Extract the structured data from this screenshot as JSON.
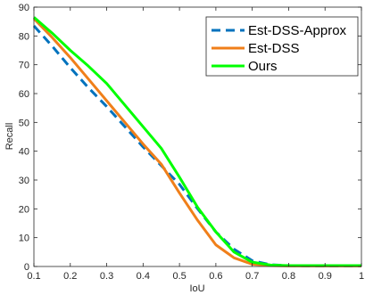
{
  "chart_data": {
    "type": "line",
    "title": "",
    "xlabel": "IoU",
    "ylabel": "Recall",
    "xlim": [
      0.1,
      1
    ],
    "ylim": [
      0,
      90
    ],
    "xticks": [
      0.1,
      0.2,
      0.3,
      0.4,
      0.5,
      0.6,
      0.7,
      0.8,
      0.9,
      1
    ],
    "xtick_labels": [
      "0.1",
      "0.2",
      "0.3",
      "0.4",
      "0.5",
      "0.6",
      "0.7",
      "0.8",
      "0.9",
      "1"
    ],
    "yticks": [
      0,
      10,
      20,
      30,
      40,
      50,
      60,
      70,
      80,
      90
    ],
    "ytick_labels": [
      "0",
      "10",
      "20",
      "30",
      "40",
      "50",
      "60",
      "70",
      "80",
      "90"
    ],
    "grid": false,
    "legend_position": "top-right",
    "x": [
      0.1,
      0.15,
      0.2,
      0.25,
      0.3,
      0.35,
      0.4,
      0.45,
      0.5,
      0.55,
      0.6,
      0.65,
      0.7,
      0.75,
      0.8,
      0.85,
      0.9,
      0.95,
      1.0
    ],
    "series": [
      {
        "name": "Est-DSS-Approx",
        "color": "#0072BD",
        "dash": "dashed",
        "values": [
          83.5,
          76.5,
          69,
          62,
          55.5,
          48.5,
          41.5,
          35,
          28.5,
          20,
          12,
          6,
          2,
          0.6,
          0.3,
          0.2,
          0.2,
          0.2,
          0.2
        ]
      },
      {
        "name": "Est-DSS",
        "color": "#F07F1A",
        "dash": "solid",
        "values": [
          86,
          79.5,
          72.5,
          65,
          57.5,
          50,
          42.5,
          35.5,
          25.5,
          16,
          7.5,
          3,
          0.8,
          0.3,
          0.2,
          0.2,
          0.2,
          0.2,
          0.2
        ]
      },
      {
        "name": "Ours",
        "color": "#00FF00",
        "dash": "solid",
        "values": [
          86.5,
          81,
          75,
          69.5,
          63.5,
          56,
          48.5,
          41,
          31,
          20.5,
          12,
          5,
          1.5,
          0.5,
          0.3,
          0.3,
          0.3,
          0.3,
          0.3
        ]
      }
    ]
  }
}
